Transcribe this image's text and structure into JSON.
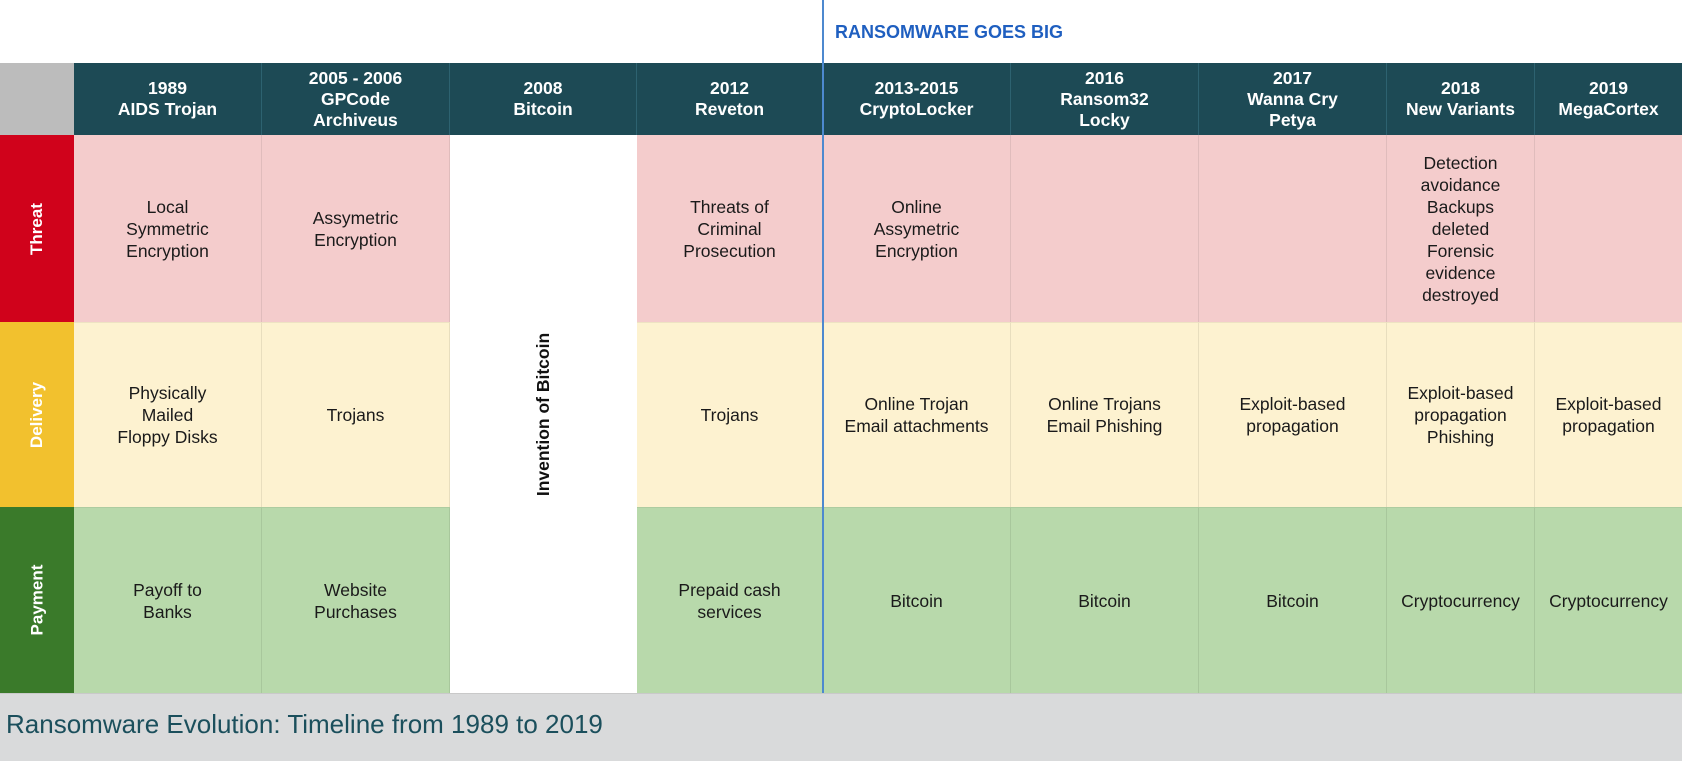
{
  "banner": "RANSOMWARE GOES BIG",
  "footer_title": "Ransomware Evolution: Timeline from 1989 to 2019",
  "row_labels": {
    "threat": "Threat",
    "delivery": "Delivery",
    "payment": "Payment"
  },
  "row_colors": {
    "threat": "#d0021b",
    "delivery": "#f2c12e",
    "payment": "#3a7a2a"
  },
  "bitcoin_invention": "Invention of Bitcoin",
  "columns": [
    {
      "header": "1989\nAIDS Trojan",
      "threat": "Local\nSymmetric\nEncryption",
      "delivery": "Physically\nMailed\nFloppy Disks",
      "payment": "Payoff to\nBanks"
    },
    {
      "header": "2005 - 2006\nGPCode\nArchiveus",
      "threat": "Assymetric\nEncryption",
      "delivery": "Trojans",
      "payment": "Website\nPurchases"
    },
    {
      "header": "2008\nBitcoin"
    },
    {
      "header": "2012\nReveton",
      "threat": "Threats of\nCriminal\nProsecution",
      "delivery": "Trojans",
      "payment": "Prepaid cash\nservices"
    },
    {
      "header": "2013-2015\nCryptoLocker",
      "threat": "Online\nAssymetric\nEncryption",
      "delivery": "Online Trojan\nEmail attachments",
      "payment": "Bitcoin"
    },
    {
      "header": "2016\nRansom32\nLocky",
      "threat": "",
      "delivery": "Online Trojans\nEmail Phishing",
      "payment": "Bitcoin"
    },
    {
      "header": "2017\nWanna Cry\nPetya",
      "threat": "",
      "delivery": "Exploit-based\npropagation",
      "payment": "Bitcoin"
    },
    {
      "header": "2018\nNew Variants",
      "threat": "Detection\navoidance\nBackups\ndeleted\nForensic\nevidence\ndestroyed",
      "delivery": "Exploit-based\npropagation\nPhishing",
      "payment": "Cryptocurrency"
    },
    {
      "header": "2019\nMegaCortex",
      "threat": "",
      "delivery": "Exploit-based\npropagation",
      "payment": "Cryptocurrency"
    }
  ]
}
